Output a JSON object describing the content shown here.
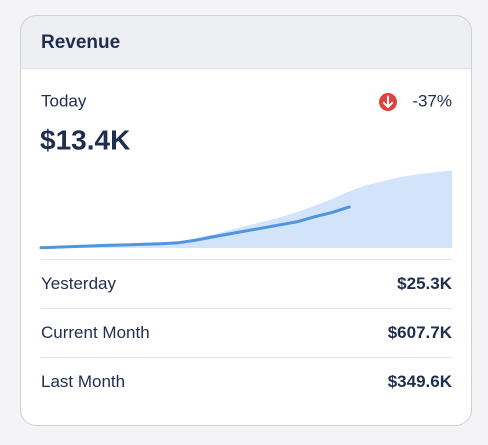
{
  "card": {
    "title": "Revenue",
    "today": {
      "label": "Today",
      "value": "$13.4K",
      "change": "-37%"
    },
    "rows": [
      {
        "label": "Yesterday",
        "value": "$25.3K"
      },
      {
        "label": "Current Month",
        "value": "$607.7K"
      },
      {
        "label": "Last Month",
        "value": "$349.6K"
      }
    ]
  },
  "chart_data": {
    "type": "area",
    "ylim": [
      0,
      30
    ],
    "series": [
      {
        "color": "#d3e4fa",
        "fill": true,
        "values": [
          0.3,
          0.5,
          0.7,
          0.9,
          1.1,
          1.3,
          1.5,
          1.8,
          2.1,
          3.2,
          4.4,
          5.8,
          7.2,
          8.6,
          10.0,
          11.8,
          13.8,
          16.0,
          18.5,
          20.5,
          21.8,
          23.2,
          24.0,
          24.7,
          25.3
        ]
      },
      {
        "color": "#4f95e0",
        "fill": false,
        "values": [
          0.1,
          0.3,
          0.5,
          0.7,
          0.9,
          1.0,
          1.2,
          1.4,
          1.7,
          2.5,
          3.6,
          4.6,
          5.6,
          6.6,
          7.6,
          8.6,
          10.2,
          11.6,
          13.4
        ]
      }
    ]
  }
}
